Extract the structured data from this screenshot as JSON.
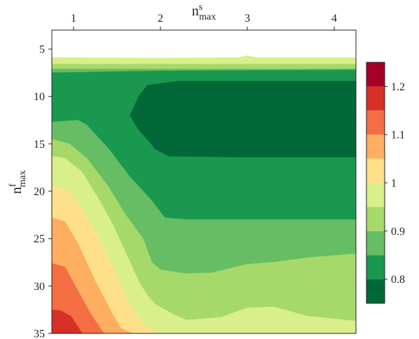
{
  "chart_data": {
    "type": "heatmap",
    "variant": "filled-contour",
    "xlabel": {
      "base": "n",
      "sup": "s",
      "sub": "max"
    },
    "ylabel": {
      "base": "n",
      "sup": "f",
      "sub": "max"
    },
    "x_axis_position": "top",
    "y_axis_inverted": true,
    "xlim": [
      0.75,
      4.25
    ],
    "ylim": [
      3,
      35
    ],
    "x_ticks": [
      1,
      2,
      3,
      4
    ],
    "x_tick_labels": [
      "1",
      "2",
      "3",
      "4"
    ],
    "y_ticks": [
      5,
      10,
      15,
      20,
      25,
      30,
      35
    ],
    "y_tick_labels": [
      "5",
      "10",
      "15",
      "20",
      "25",
      "30",
      "35"
    ],
    "grid": false,
    "colorbar": {
      "position": "right",
      "levels": [
        0.75,
        0.8,
        0.85,
        0.9,
        0.95,
        1.0,
        1.05,
        1.1,
        1.15,
        1.2,
        1.25
      ],
      "colors": [
        "#006837",
        "#1a9850",
        "#66bd63",
        "#a6d96a",
        "#d9ef8b",
        "#fee08b",
        "#fdae61",
        "#f46d43",
        "#d73027",
        "#a50026"
      ],
      "ticks": [
        0.8,
        0.9,
        1.0,
        1.1,
        1.2
      ],
      "tick_labels": [
        "0.8",
        "0.9",
        "1",
        "1.1",
        "1.2"
      ]
    },
    "no_data_region": {
      "y_from": 3,
      "y_to": 5.9
    },
    "regions": [
      {
        "level": 0.95,
        "color": "#d9ef8b",
        "boundary": [
          [
            0.75,
            5.9
          ],
          [
            2.0,
            5.95
          ],
          [
            2.9,
            5.9
          ],
          [
            3.0,
            5.7
          ],
          [
            3.1,
            5.9
          ],
          [
            4.25,
            5.9
          ],
          [
            4.25,
            35
          ],
          [
            0.75,
            35
          ]
        ]
      },
      {
        "level": 0.9,
        "color": "#a6d96a",
        "boundary": [
          [
            0.75,
            6.6
          ],
          [
            4.25,
            6.6
          ],
          [
            4.25,
            35
          ],
          [
            0.75,
            35
          ]
        ]
      },
      {
        "level": 0.85,
        "color": "#66bd63",
        "boundary": [
          [
            0.75,
            7.1
          ],
          [
            4.25,
            7.1
          ],
          [
            4.25,
            35
          ],
          [
            0.75,
            35
          ]
        ]
      },
      {
        "level": 0.8,
        "color": "#1a9850",
        "boundary": [
          [
            0.75,
            7.5
          ],
          [
            2.0,
            7.3
          ],
          [
            4.25,
            7.2
          ],
          [
            4.25,
            35
          ],
          [
            0.75,
            35
          ]
        ]
      },
      {
        "level": 0.75,
        "color": "#006837",
        "boundary": [
          [
            1.75,
            10.0
          ],
          [
            1.85,
            8.8
          ],
          [
            2.2,
            8.4
          ],
          [
            3.0,
            8.4
          ],
          [
            4.25,
            8.4
          ],
          [
            4.25,
            16.4
          ],
          [
            3.0,
            16.4
          ],
          [
            2.1,
            16.3
          ],
          [
            1.95,
            15.6
          ],
          [
            1.75,
            13.5
          ],
          [
            1.65,
            12.0
          ]
        ]
      },
      {
        "level": 0.85,
        "color": "#66bd63",
        "boundary": [
          [
            0.75,
            12.7
          ],
          [
            1.05,
            12.5
          ],
          [
            1.15,
            13.0
          ],
          [
            1.4,
            15.5
          ],
          [
            1.65,
            18.5
          ],
          [
            1.9,
            21.0
          ],
          [
            2.05,
            22.8
          ],
          [
            2.3,
            23.0
          ],
          [
            3.0,
            23.0
          ],
          [
            4.25,
            23.0
          ],
          [
            4.25,
            35
          ],
          [
            0.75,
            35
          ]
        ]
      },
      {
        "level": 0.9,
        "color": "#a6d96a",
        "boundary": [
          [
            0.75,
            14.5
          ],
          [
            0.95,
            15.0
          ],
          [
            1.15,
            16.5
          ],
          [
            1.4,
            19.5
          ],
          [
            1.6,
            22.5
          ],
          [
            1.8,
            25.0
          ],
          [
            1.9,
            27.5
          ],
          [
            2.0,
            28.3
          ],
          [
            2.3,
            28.7
          ],
          [
            2.6,
            28.6
          ],
          [
            3.0,
            27.7
          ],
          [
            3.3,
            27.5
          ],
          [
            3.7,
            27.0
          ],
          [
            4.25,
            26.6
          ],
          [
            4.25,
            35
          ],
          [
            0.75,
            35
          ]
        ]
      },
      {
        "level": 0.95,
        "color": "#d9ef8b",
        "boundary": [
          [
            0.75,
            16.3
          ],
          [
            0.9,
            16.5
          ],
          [
            1.1,
            18.0
          ],
          [
            1.3,
            21.0
          ],
          [
            1.45,
            23.5
          ],
          [
            1.6,
            26.5
          ],
          [
            1.75,
            29.5
          ],
          [
            1.85,
            31.0
          ],
          [
            1.95,
            32.0
          ],
          [
            2.15,
            33.0
          ],
          [
            2.3,
            33.6
          ],
          [
            2.7,
            33.3
          ],
          [
            3.0,
            32.3
          ],
          [
            3.3,
            32.2
          ],
          [
            3.7,
            33.2
          ],
          [
            4.25,
            33.7
          ],
          [
            4.25,
            35
          ],
          [
            0.75,
            35
          ]
        ]
      },
      {
        "level": 1.0,
        "color": "#fee08b",
        "boundary": [
          [
            0.75,
            19.5
          ],
          [
            0.95,
            20.0
          ],
          [
            1.1,
            22.0
          ],
          [
            1.3,
            25.0
          ],
          [
            1.5,
            29.0
          ],
          [
            1.65,
            32.0
          ],
          [
            1.8,
            34.0
          ],
          [
            1.98,
            35
          ],
          [
            0.75,
            35
          ]
        ]
      },
      {
        "level": 1.05,
        "color": "#fdae61",
        "boundary": [
          [
            0.75,
            22.8
          ],
          [
            0.9,
            23.2
          ],
          [
            1.05,
            25.5
          ],
          [
            1.25,
            29.5
          ],
          [
            1.45,
            33.0
          ],
          [
            1.55,
            34.5
          ],
          [
            1.68,
            35
          ],
          [
            0.75,
            35
          ]
        ]
      },
      {
        "level": 1.1,
        "color": "#f46d43",
        "boundary": [
          [
            0.75,
            27.6
          ],
          [
            0.9,
            28.0
          ],
          [
            1.05,
            30.5
          ],
          [
            1.2,
            33.0
          ],
          [
            1.35,
            35
          ],
          [
            0.75,
            35
          ]
        ]
      },
      {
        "level": 1.15,
        "color": "#d73027",
        "boundary": [
          [
            0.75,
            32.5
          ],
          [
            0.85,
            32.6
          ],
          [
            0.97,
            33.2
          ],
          [
            1.1,
            35
          ],
          [
            0.75,
            35
          ]
        ]
      }
    ]
  }
}
